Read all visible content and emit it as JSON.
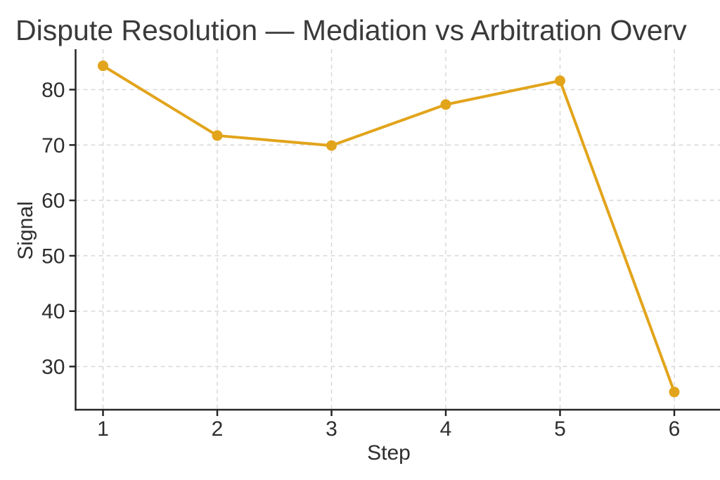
{
  "chart_data": {
    "type": "line",
    "title": "Dispute Resolution — Mediation vs Arbitration Overv",
    "xlabel": "Step",
    "ylabel": "Signal",
    "x": [
      1,
      2,
      3,
      4,
      5,
      6
    ],
    "series": [
      {
        "name": "Signal",
        "values": [
          84.3,
          71.7,
          69.9,
          77.3,
          81.6,
          25.4
        ]
      }
    ],
    "xticks": [
      1,
      2,
      3,
      4,
      5,
      6
    ],
    "yticks": [
      30,
      40,
      50,
      60,
      70,
      80
    ],
    "xlim": [
      0.76,
      6.4
    ],
    "ylim": [
      22.2,
      87.3
    ],
    "grid": true,
    "grid_style": "dashed",
    "legend": false,
    "colors": {
      "line": "#E2A41B",
      "marker": "#E2A41B",
      "grid": "#D8D8D8",
      "axis": "#262626",
      "tick_text": "#2E2E2E",
      "title_text": "#3A3A3A"
    }
  }
}
